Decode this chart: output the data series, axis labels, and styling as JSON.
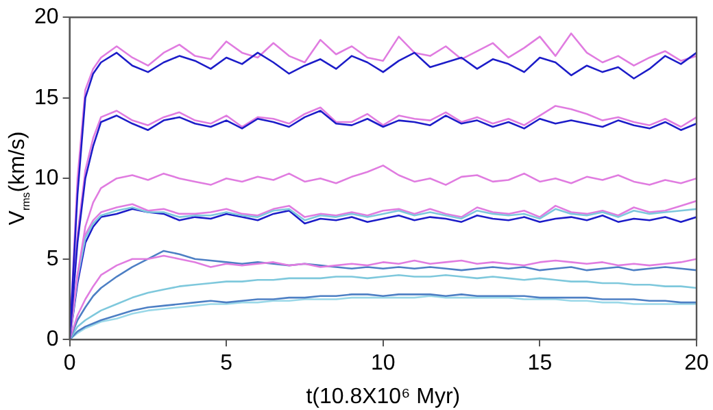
{
  "chart_data": {
    "type": "line",
    "xlabel": "t(10.8X10⁶ Myr)",
    "ylabel": "V$_{rms}$(km/s)",
    "x": [
      0,
      0.25,
      0.5,
      0.75,
      1,
      1.5,
      2,
      2.5,
      3,
      3.5,
      4,
      4.5,
      5,
      5.5,
      6,
      6.5,
      7,
      7.5,
      8,
      8.5,
      9,
      9.5,
      10,
      10.5,
      11,
      11.5,
      12,
      12.5,
      13,
      13.5,
      14,
      14.5,
      15,
      15.5,
      16,
      16.5,
      17,
      17.5,
      18,
      18.5,
      19,
      19.5,
      20
    ],
    "xlim": [
      0,
      20
    ],
    "xticks": [
      0,
      5,
      10,
      15,
      20
    ],
    "ylim": [
      0,
      20
    ],
    "yticks": [
      0,
      5,
      10,
      15,
      20
    ],
    "grid": false,
    "legend": false,
    "marker": "none",
    "line_style": "solid",
    "series": [
      {
        "color": "#1c1cc8",
        "values": [
          0,
          9,
          15,
          16.5,
          17.2,
          17.8,
          17,
          16.6,
          17.2,
          17.6,
          17.3,
          16.8,
          17.5,
          17.1,
          17.8,
          17.2,
          16.5,
          17,
          17.4,
          16.8,
          17.6,
          17.2,
          16.6,
          17.3,
          17.8,
          16.9,
          17.2,
          17.5,
          16.8,
          17.4,
          17.1,
          16.6,
          17.5,
          17.2,
          16.4,
          17,
          16.6,
          16.9,
          16.2,
          16.8,
          17.6,
          17.1,
          17.8
        ]
      },
      {
        "color": "#e07ce0",
        "values": [
          0,
          10,
          15.5,
          16.8,
          17.5,
          18.2,
          17.5,
          17,
          17.8,
          18.3,
          17.6,
          17.4,
          18.5,
          17.8,
          17.5,
          18.4,
          17.6,
          17.2,
          18.6,
          17.7,
          18.2,
          17.5,
          17.3,
          18.8,
          17.8,
          17.6,
          18.2,
          17.4,
          17.9,
          18.4,
          17.5,
          18.1,
          18.8,
          17.6,
          19,
          17.8,
          17.2,
          17.6,
          17,
          17.5,
          17.9,
          17.3,
          17.6
        ]
      },
      {
        "color": "#1c1cc8",
        "values": [
          0,
          6,
          10,
          12,
          13.5,
          13.9,
          13.4,
          13,
          13.6,
          13.8,
          13.4,
          13.2,
          13.6,
          13.1,
          13.7,
          13.5,
          13.2,
          13.8,
          14.2,
          13.4,
          13.3,
          13.7,
          13.2,
          13.6,
          13.5,
          13.3,
          13.9,
          13.4,
          13.6,
          13.2,
          13.5,
          13.1,
          13.7,
          13.4,
          13.6,
          13.4,
          13.2,
          13.6,
          13.3,
          13.1,
          13.5,
          13,
          13.4
        ]
      },
      {
        "color": "#e07ce0",
        "values": [
          0,
          6.5,
          10.5,
          12.5,
          13.8,
          14.2,
          13.6,
          13.3,
          13.8,
          14.1,
          13.6,
          13.4,
          13.9,
          13.2,
          13.8,
          13.7,
          13.4,
          14,
          14.4,
          13.5,
          13.5,
          14,
          13.3,
          13.9,
          13.7,
          13.6,
          14.1,
          13.5,
          13.8,
          13.4,
          13.7,
          13.3,
          13.9,
          14.5,
          14.3,
          14,
          13.6,
          13.8,
          13.5,
          13.3,
          13.7,
          13.2,
          13.8
        ]
      },
      {
        "color": "#e07ce0",
        "values": [
          0,
          4,
          7,
          8.5,
          9.4,
          10,
          10.2,
          9.9,
          10.3,
          10,
          9.8,
          9.6,
          10,
          9.8,
          10.1,
          9.9,
          10.3,
          9.8,
          10,
          9.7,
          10.1,
          10.4,
          10.8,
          10.2,
          9.8,
          10,
          9.6,
          10.1,
          10.2,
          9.8,
          9.9,
          10.3,
          9.8,
          10,
          9.7,
          10.1,
          9.9,
          10.2,
          9.8,
          9.6,
          9.9,
          9.7,
          10
        ]
      },
      {
        "color": "#7ec8dc",
        "values": [
          0,
          3.8,
          6.3,
          7.2,
          7.7,
          8,
          8.2,
          7.9,
          7.9,
          7.6,
          7.7,
          7.7,
          7.9,
          7.7,
          7.6,
          8,
          8.1,
          7.4,
          7.7,
          7.6,
          7.8,
          7.6,
          7.8,
          8,
          7.7,
          7.9,
          7.7,
          7.5,
          8,
          7.8,
          7.7,
          7.8,
          7.5,
          8.1,
          7.8,
          7.7,
          7.9,
          7.6,
          8,
          7.8,
          7.9,
          8,
          8.1
        ]
      },
      {
        "color": "#1c1cc8",
        "values": [
          0,
          3.5,
          6,
          7,
          7.6,
          7.8,
          8.1,
          7.9,
          7.8,
          7.4,
          7.6,
          7.5,
          7.8,
          7.6,
          7.4,
          7.8,
          8,
          7.2,
          7.5,
          7.4,
          7.6,
          7.3,
          7.5,
          7.7,
          7.4,
          7.6,
          7.5,
          7.3,
          7.7,
          7.5,
          7.4,
          7.6,
          7.3,
          7.5,
          7.6,
          7.4,
          7.7,
          7.3,
          7.5,
          7.4,
          7.6,
          7.3,
          7.6
        ]
      },
      {
        "color": "#e07ce0",
        "values": [
          0,
          4,
          6.5,
          7.4,
          7.9,
          8.2,
          8.4,
          8,
          8.1,
          7.8,
          7.8,
          7.9,
          8.1,
          7.8,
          7.7,
          8.1,
          8.3,
          7.6,
          7.8,
          7.7,
          7.9,
          7.7,
          8,
          8.1,
          7.8,
          8.1,
          7.8,
          7.6,
          8.2,
          7.9,
          7.8,
          8,
          7.6,
          8.3,
          7.9,
          7.8,
          8,
          7.7,
          8.2,
          7.9,
          8,
          8.3,
          8.6
        ]
      },
      {
        "color": "#e07ce0",
        "values": [
          0,
          1.5,
          2.5,
          3.3,
          4,
          4.6,
          5,
          5,
          5.2,
          5,
          4.8,
          4.5,
          4.7,
          4.6,
          4.7,
          4.8,
          4.6,
          4.7,
          4.5,
          4.6,
          4.7,
          4.6,
          4.8,
          4.7,
          4.9,
          4.7,
          4.8,
          4.9,
          4.7,
          4.8,
          4.7,
          4.6,
          4.8,
          4.9,
          4.8,
          4.7,
          4.8,
          4.6,
          4.7,
          4.6,
          4.7,
          4.8,
          5
        ]
      },
      {
        "color": "#4d7fc4",
        "values": [
          0,
          1.2,
          2,
          2.7,
          3.2,
          3.9,
          4.5,
          5,
          5.5,
          5.3,
          5,
          4.9,
          4.8,
          4.7,
          4.8,
          4.7,
          4.6,
          4.7,
          4.6,
          4.5,
          4.4,
          4.5,
          4.4,
          4.5,
          4.4,
          4.5,
          4.4,
          4.3,
          4.4,
          4.5,
          4.4,
          4.5,
          4.3,
          4.4,
          4.5,
          4.3,
          4.4,
          4.5,
          4.3,
          4.4,
          4.5,
          4.4,
          4.3
        ]
      },
      {
        "color": "#7ec8dc",
        "values": [
          0,
          0.8,
          1.2,
          1.5,
          1.8,
          2.2,
          2.6,
          2.9,
          3.1,
          3.3,
          3.4,
          3.5,
          3.6,
          3.6,
          3.7,
          3.7,
          3.8,
          3.8,
          3.8,
          3.9,
          3.9,
          3.8,
          3.9,
          4,
          3.9,
          3.9,
          4,
          3.9,
          3.8,
          3.9,
          3.8,
          3.7,
          3.8,
          3.7,
          3.6,
          3.6,
          3.5,
          3.5,
          3.4,
          3.4,
          3.3,
          3.3,
          3.2
        ]
      },
      {
        "color": "#4d7fc4",
        "values": [
          0,
          0.5,
          0.8,
          1,
          1.2,
          1.5,
          1.8,
          2,
          2.1,
          2.2,
          2.3,
          2.4,
          2.3,
          2.4,
          2.5,
          2.5,
          2.6,
          2.6,
          2.7,
          2.7,
          2.8,
          2.8,
          2.7,
          2.8,
          2.8,
          2.8,
          2.7,
          2.8,
          2.7,
          2.7,
          2.7,
          2.7,
          2.6,
          2.6,
          2.6,
          2.6,
          2.5,
          2.5,
          2.5,
          2.4,
          2.4,
          2.3,
          2.3
        ]
      },
      {
        "color": "#9ad8e8",
        "values": [
          0,
          0.4,
          0.7,
          0.9,
          1.1,
          1.3,
          1.6,
          1.8,
          1.9,
          2,
          2.1,
          2.2,
          2.2,
          2.3,
          2.3,
          2.4,
          2.4,
          2.5,
          2.5,
          2.5,
          2.6,
          2.6,
          2.6,
          2.6,
          2.6,
          2.7,
          2.6,
          2.6,
          2.6,
          2.6,
          2.6,
          2.5,
          2.5,
          2.5,
          2.4,
          2.4,
          2.3,
          2.3,
          2.2,
          2.2,
          2.2,
          2.2,
          2.2
        ]
      }
    ]
  }
}
